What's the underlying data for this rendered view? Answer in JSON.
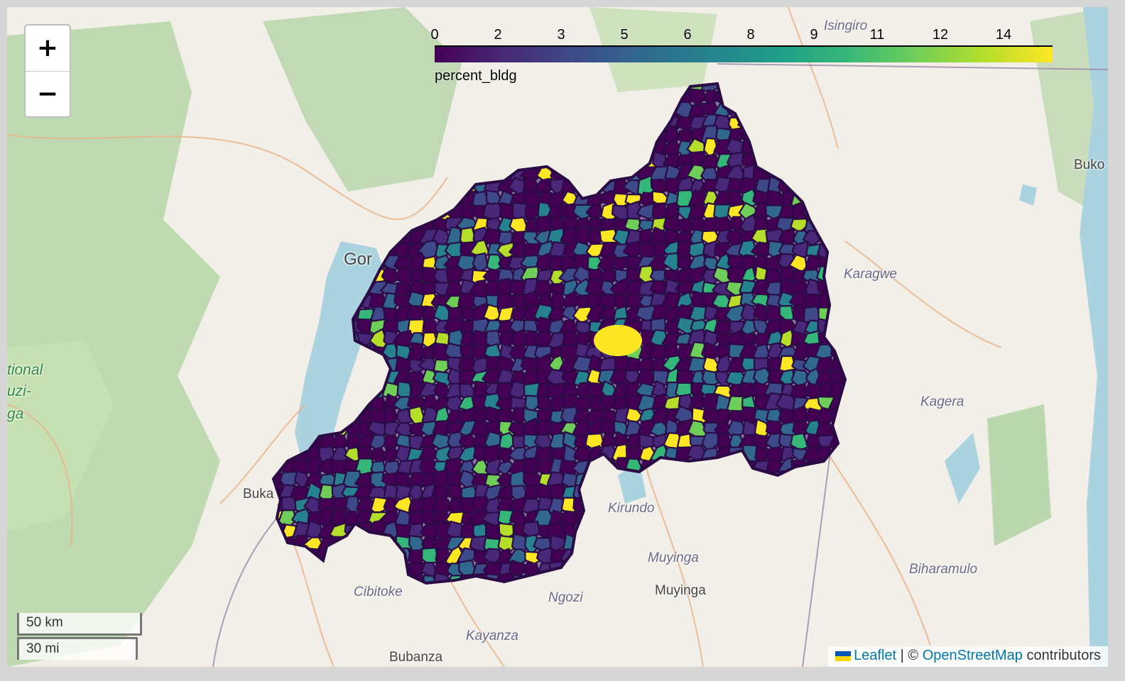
{
  "zoom": {
    "in_label": "+",
    "out_label": "−"
  },
  "legend": {
    "caption": "percent_bldg",
    "ticks": [
      "0",
      "2",
      "3",
      "5",
      "6",
      "8",
      "9",
      "11",
      "12",
      "14"
    ],
    "range": [
      0,
      15.5
    ],
    "colormap": [
      "#440154",
      "#482878",
      "#3e4989",
      "#31688e",
      "#26828e",
      "#1f9e89",
      "#35b779",
      "#6ece58",
      "#b5de2b",
      "#fde725"
    ]
  },
  "places": {
    "isingiro": "Isingiro",
    "goma": "Gor",
    "karagwe": "Karagwe",
    "kagera": "Kagera",
    "kirundo": "Kirundo",
    "muyinga_region": "Muyinga",
    "muyinga_town": "Muyinga",
    "ngozi": "Ngozi",
    "cibitoke": "Cibitoke",
    "kayanza": "Kayanza",
    "bubanza": "Bubanza",
    "bukavu": "Buka",
    "biharamulo": "Biharamulo",
    "bukoba": "Buko",
    "park_line1": "tional",
    "park_line2": "uzi-",
    "park_line3": "ga"
  },
  "scale": {
    "km": "50 km",
    "mi": "30 mi"
  },
  "attribution": {
    "leaflet": "Leaflet",
    "separator": " | © ",
    "osm": "OpenStreetMap",
    "suffix": " contributors"
  },
  "colors": {
    "boundary": "#2a0b45",
    "water": "#aad3df",
    "forest": "#add19e"
  }
}
